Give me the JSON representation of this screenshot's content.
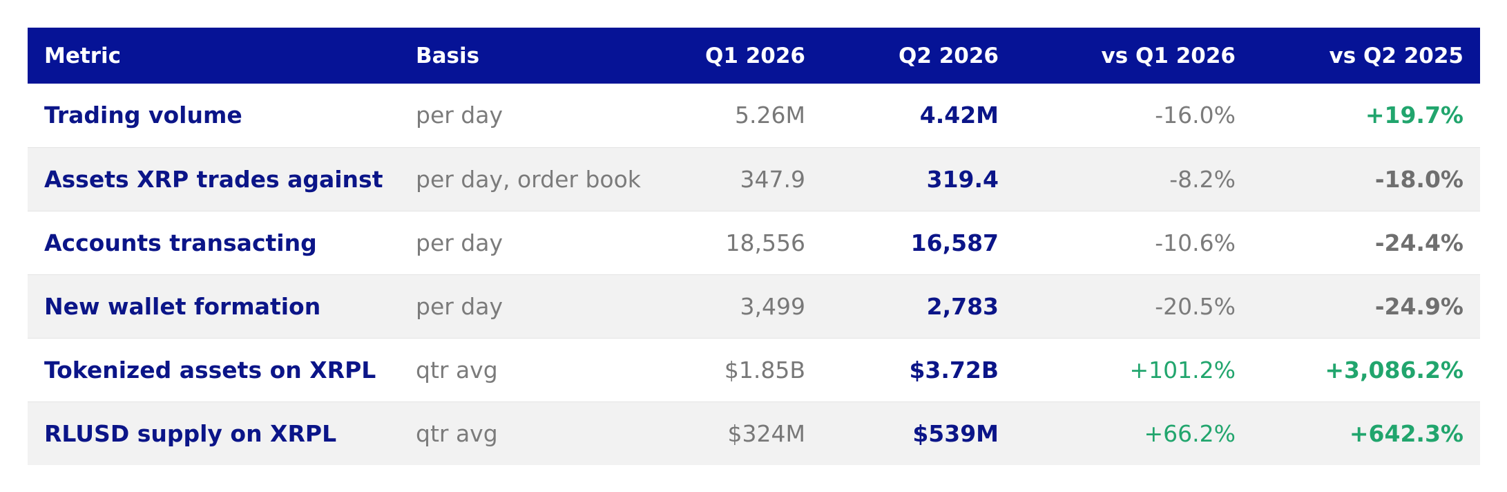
{
  "colors": {
    "header_bg": "#061396",
    "metric_text": "#0b1588",
    "muted_text": "#7b7b7b",
    "positive": "#21a56d",
    "stripe": "#f2f2f2"
  },
  "table": {
    "headers": [
      "Metric",
      "Basis",
      "Q1 2026",
      "Q2 2026",
      "vs Q1 2026",
      "vs Q2 2025"
    ],
    "rows": [
      {
        "metric": "Trading volume",
        "basis": "per day",
        "q1": "5.26M",
        "q2": "4.42M",
        "vs_q1": "-16.0%",
        "vs_q2_2025": "+19.7%"
      },
      {
        "metric": "Assets XRP trades against",
        "basis": "per day, order book",
        "q1": "347.9",
        "q2": "319.4",
        "vs_q1": "-8.2%",
        "vs_q2_2025": "-18.0%"
      },
      {
        "metric": "Accounts transacting",
        "basis": "per day",
        "q1": "18,556",
        "q2": "16,587",
        "vs_q1": "-10.6%",
        "vs_q2_2025": "-24.4%"
      },
      {
        "metric": "New wallet formation",
        "basis": "per day",
        "q1": "3,499",
        "q2": "2,783",
        "vs_q1": "-20.5%",
        "vs_q2_2025": "-24.9%"
      },
      {
        "metric": "Tokenized assets on XRPL",
        "basis": "qtr avg",
        "q1": "$1.85B",
        "q2": "$3.72B",
        "vs_q1": "+101.2%",
        "vs_q2_2025": "+3,086.2%"
      },
      {
        "metric": "RLUSD supply on XRPL",
        "basis": "qtr avg",
        "q1": "$324M",
        "q2": "$539M",
        "vs_q1": "+66.2%",
        "vs_q2_2025": "+642.3%"
      }
    ]
  }
}
